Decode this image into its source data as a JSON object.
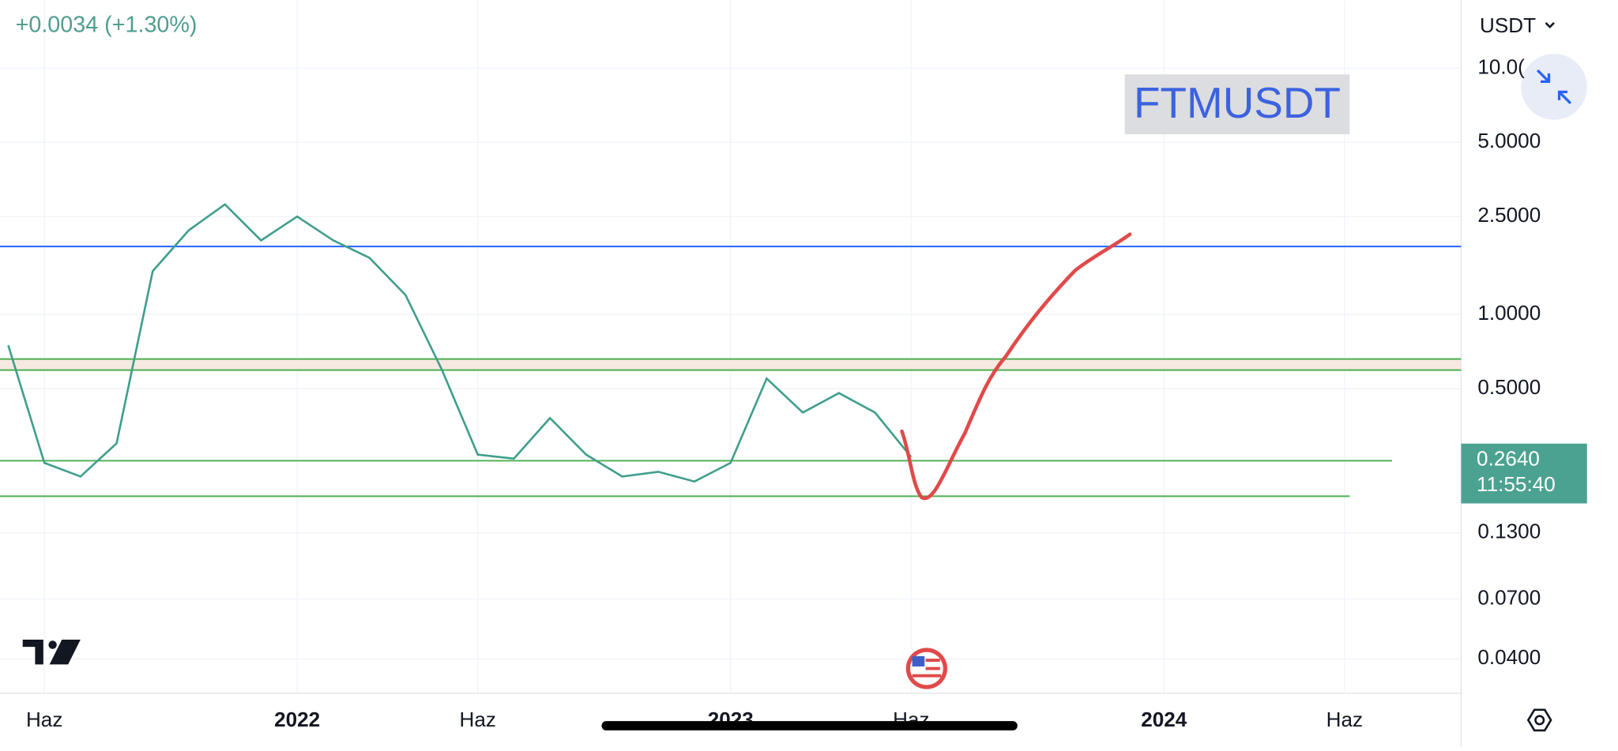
{
  "header": {
    "change": "+0.0034 (+1.30%)",
    "currency": "USDT"
  },
  "chart_data": {
    "type": "line",
    "title": "FTMUSDT",
    "log_scale": true,
    "grid": true,
    "x": [
      "2021-05",
      "2021-06",
      "2021-07",
      "2021-08",
      "2021-09",
      "2021-10",
      "2021-11",
      "2021-12",
      "2022-01",
      "2022-02",
      "2022-03",
      "2022-04",
      "2022-05",
      "2022-06",
      "2022-07",
      "2022-08",
      "2022-09",
      "2022-10",
      "2022-11",
      "2022-12",
      "2023-01",
      "2023-02",
      "2023-03",
      "2023-04",
      "2023-05",
      "2023-06"
    ],
    "series": [
      {
        "color": "#3f9e8c",
        "values": [
          0.75,
          0.25,
          0.22,
          0.3,
          1.5,
          2.2,
          2.8,
          2.0,
          2.5,
          2.0,
          1.7,
          1.2,
          0.6,
          0.27,
          0.26,
          0.38,
          0.27,
          0.22,
          0.23,
          0.21,
          0.25,
          0.55,
          0.4,
          0.48,
          0.4,
          0.264
        ]
      }
    ],
    "ylim": [
      0.029,
      18.9
    ],
    "yticks": [
      {
        "value": 10,
        "label": "10.0("
      },
      {
        "value": 5,
        "label": "5.0000"
      },
      {
        "value": 2.5,
        "label": "2.5000"
      },
      {
        "value": 1,
        "label": "1.0000"
      },
      {
        "value": 0.5,
        "label": "0.5000"
      },
      {
        "value": 0.13,
        "label": "0.1300"
      },
      {
        "value": 0.07,
        "label": "0.0700"
      },
      {
        "value": 0.04,
        "label": "0.0400"
      }
    ],
    "xticks": [
      {
        "value": "2021-06",
        "label": "Haz"
      },
      {
        "value": "2022-01",
        "label": "2022"
      },
      {
        "value": "2022-06",
        "label": "Haz"
      },
      {
        "value": "2023-01",
        "label": "2023"
      },
      {
        "value": "2023-06",
        "label": "Haz"
      },
      {
        "value": "2024-01",
        "label": "2024"
      },
      {
        "value": "2024-06",
        "label": "Haz"
      }
    ],
    "levels": [
      {
        "value": 1.89,
        "color": "#2962ff"
      },
      {
        "value": 0.66,
        "color": "#4caf50"
      },
      {
        "value": 0.595,
        "color": "#4caf50"
      },
      {
        "value": 0.255,
        "color": "#4caf50"
      },
      {
        "value": 0.183,
        "color": "#4caf50"
      }
    ],
    "last_price": {
      "value": 0.264,
      "label": "0.2640"
    },
    "countdown": "11:55:40"
  }
}
